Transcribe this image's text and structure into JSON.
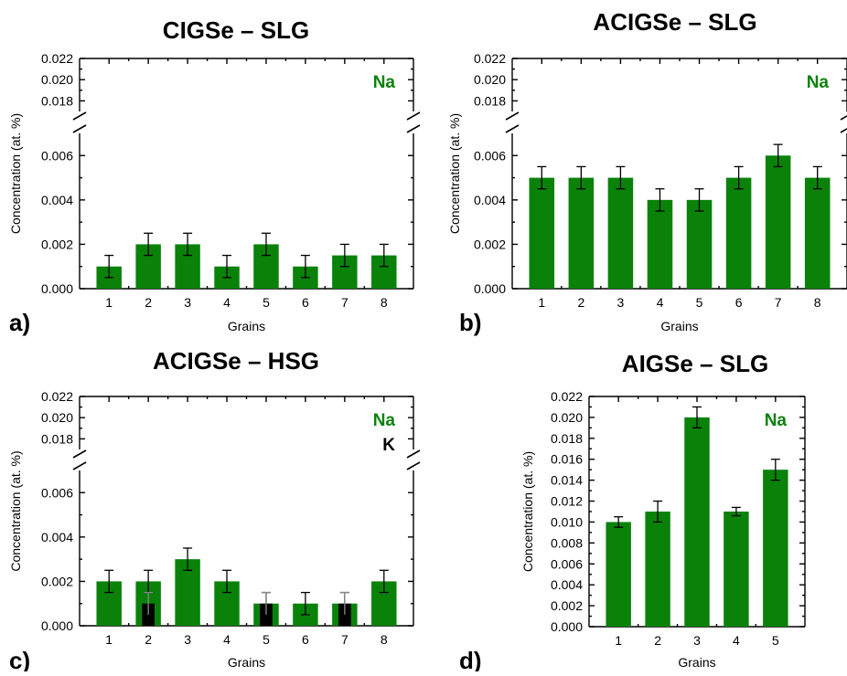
{
  "colors": {
    "na": "#0a820a",
    "k": "#000000",
    "axis": "#000000"
  },
  "chart_data": [
    {
      "id": "a",
      "type": "bar",
      "title": "CIGSe – SLG",
      "panel_label": "a)",
      "xlabel": "Grains",
      "ylabel": "Concentration (at. %)",
      "broken_axis": true,
      "ylim_lower": [
        0,
        0.007
      ],
      "ylim_upper": [
        0.017,
        0.022
      ],
      "yticks_lower": [
        "0.000",
        "0.002",
        "0.004",
        "0.006"
      ],
      "yticks_upper": [
        "0.018",
        "0.020",
        "0.022"
      ],
      "categories": [
        "1",
        "2",
        "3",
        "4",
        "5",
        "6",
        "7",
        "8"
      ],
      "series": [
        {
          "name": "Na",
          "values": [
            0.001,
            0.002,
            0.002,
            0.001,
            0.002,
            0.001,
            0.0015,
            0.0015
          ],
          "errors": [
            0.0005,
            0.0005,
            0.0005,
            0.0005,
            0.0005,
            0.0005,
            0.0005,
            0.0005
          ]
        }
      ]
    },
    {
      "id": "b",
      "type": "bar",
      "title": "ACIGSe – SLG",
      "panel_label": "b)",
      "xlabel": "Grains",
      "ylabel": "Concentration (at. %)",
      "broken_axis": true,
      "ylim_lower": [
        0,
        0.007
      ],
      "ylim_upper": [
        0.017,
        0.022
      ],
      "yticks_lower": [
        "0.000",
        "0.002",
        "0.004",
        "0.006"
      ],
      "yticks_upper": [
        "0.018",
        "0.020",
        "0.022"
      ],
      "categories": [
        "1",
        "2",
        "3",
        "4",
        "5",
        "6",
        "7",
        "8"
      ],
      "series": [
        {
          "name": "Na",
          "values": [
            0.005,
            0.005,
            0.005,
            0.004,
            0.004,
            0.005,
            0.006,
            0.005
          ],
          "errors": [
            0.0005,
            0.0005,
            0.0005,
            0.0005,
            0.0005,
            0.0005,
            0.0005,
            0.0005
          ]
        }
      ]
    },
    {
      "id": "c",
      "type": "bar",
      "title": "ACIGSe – HSG",
      "panel_label": "c)",
      "xlabel": "Grains",
      "ylabel": "Concentration (at. %)",
      "broken_axis": true,
      "ylim_lower": [
        0,
        0.007
      ],
      "ylim_upper": [
        0.017,
        0.022
      ],
      "yticks_lower": [
        "0.000",
        "0.002",
        "0.004",
        "0.006"
      ],
      "yticks_upper": [
        "0.018",
        "0.020",
        "0.022"
      ],
      "categories": [
        "1",
        "2",
        "3",
        "4",
        "5",
        "6",
        "7",
        "8"
      ],
      "series": [
        {
          "name": "Na",
          "values": [
            0.002,
            0.002,
            0.003,
            0.002,
            0.001,
            0.001,
            0.001,
            0.002
          ],
          "errors": [
            0.0005,
            0.0005,
            0.0005,
            0.0005,
            0.0005,
            0.0005,
            0.0005,
            0.0005
          ]
        },
        {
          "name": "K",
          "values": [
            null,
            0.001,
            null,
            null,
            0.001,
            null,
            0.001,
            null
          ],
          "errors": [
            null,
            0.0005,
            null,
            null,
            0.0005,
            null,
            0.0005,
            null
          ]
        }
      ]
    },
    {
      "id": "d",
      "type": "bar",
      "title": "AIGSe – SLG",
      "panel_label": "d)",
      "xlabel": "Grains",
      "ylabel": "Concentration (at. %)",
      "broken_axis": false,
      "ylim": [
        0,
        0.022
      ],
      "yticks": [
        "0.000",
        "0.002",
        "0.004",
        "0.006",
        "0.008",
        "0.010",
        "0.012",
        "0.014",
        "0.016",
        "0.018",
        "0.020",
        "0.022"
      ],
      "categories": [
        "1",
        "2",
        "3",
        "4",
        "5"
      ],
      "series": [
        {
          "name": "Na",
          "values": [
            0.01,
            0.011,
            0.02,
            0.011,
            0.015
          ],
          "errors": [
            0.0005,
            0.001,
            0.001,
            0.0004,
            0.001
          ]
        }
      ]
    }
  ]
}
